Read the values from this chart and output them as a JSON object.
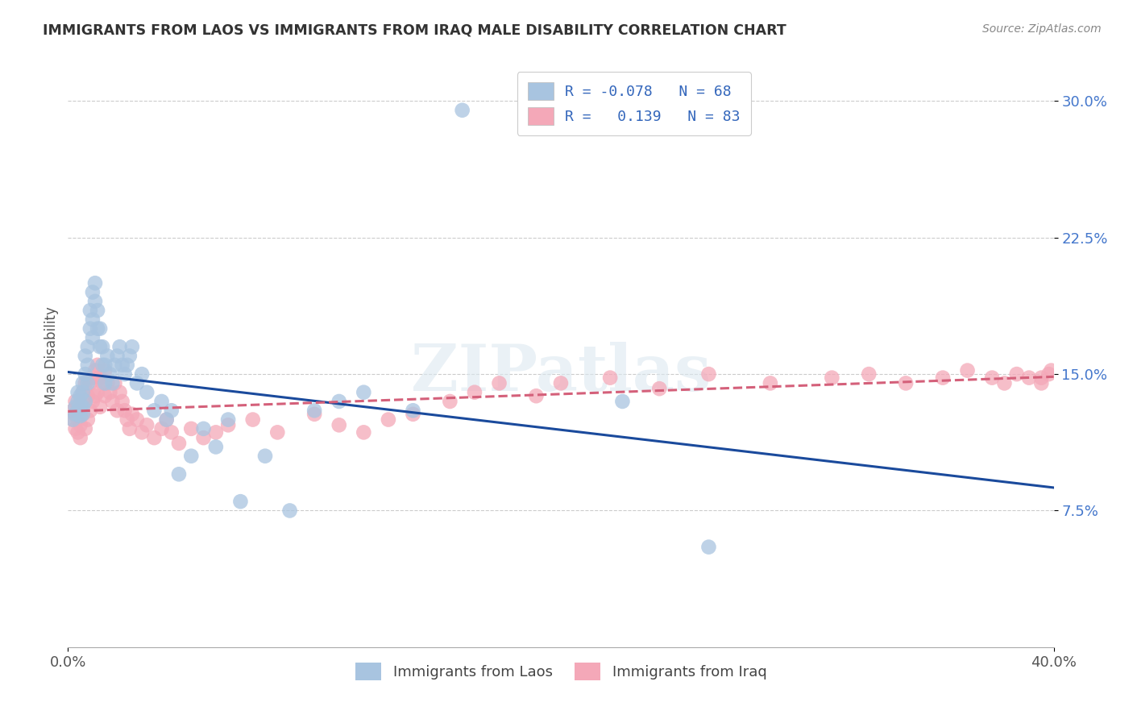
{
  "title": "IMMIGRANTS FROM LAOS VS IMMIGRANTS FROM IRAQ MALE DISABILITY CORRELATION CHART",
  "source": "Source: ZipAtlas.com",
  "ylabel": "Male Disability",
  "xlim": [
    0.0,
    0.4
  ],
  "ylim": [
    0.0,
    0.32
  ],
  "ytick_values": [
    0.075,
    0.15,
    0.225,
    0.3
  ],
  "ytick_labels": [
    "7.5%",
    "15.0%",
    "22.5%",
    "30.0%"
  ],
  "xtick_values": [
    0.0,
    0.4
  ],
  "xtick_labels": [
    "0.0%",
    "40.0%"
  ],
  "legend_laos_R": "-0.078",
  "legend_laos_N": "68",
  "legend_iraq_R": "0.139",
  "legend_iraq_N": "83",
  "laos_color": "#a8c4e0",
  "iraq_color": "#f4a8b8",
  "laos_line_color": "#1a4a9c",
  "iraq_line_color": "#d4607a",
  "background_color": "#ffffff",
  "watermark": "ZIPatlas",
  "laos_x": [
    0.002,
    0.003,
    0.003,
    0.004,
    0.004,
    0.004,
    0.005,
    0.005,
    0.005,
    0.005,
    0.006,
    0.006,
    0.006,
    0.006,
    0.007,
    0.007,
    0.007,
    0.008,
    0.008,
    0.008,
    0.009,
    0.009,
    0.01,
    0.01,
    0.01,
    0.011,
    0.011,
    0.012,
    0.012,
    0.013,
    0.013,
    0.014,
    0.014,
    0.015,
    0.015,
    0.016,
    0.017,
    0.018,
    0.019,
    0.02,
    0.021,
    0.022,
    0.023,
    0.024,
    0.025,
    0.026,
    0.028,
    0.03,
    0.032,
    0.035,
    0.038,
    0.04,
    0.042,
    0.045,
    0.05,
    0.055,
    0.06,
    0.065,
    0.07,
    0.08,
    0.09,
    0.1,
    0.11,
    0.12,
    0.14,
    0.16,
    0.225,
    0.26
  ],
  "laos_y": [
    0.125,
    0.128,
    0.132,
    0.13,
    0.135,
    0.14,
    0.127,
    0.13,
    0.133,
    0.138,
    0.128,
    0.132,
    0.14,
    0.145,
    0.135,
    0.15,
    0.16,
    0.145,
    0.155,
    0.165,
    0.175,
    0.185,
    0.195,
    0.18,
    0.17,
    0.19,
    0.2,
    0.175,
    0.185,
    0.165,
    0.175,
    0.155,
    0.165,
    0.145,
    0.155,
    0.16,
    0.15,
    0.145,
    0.155,
    0.16,
    0.165,
    0.155,
    0.15,
    0.155,
    0.16,
    0.165,
    0.145,
    0.15,
    0.14,
    0.13,
    0.135,
    0.125,
    0.13,
    0.095,
    0.105,
    0.12,
    0.11,
    0.125,
    0.08,
    0.105,
    0.075,
    0.13,
    0.135,
    0.14,
    0.13,
    0.295,
    0.135,
    0.055
  ],
  "iraq_x": [
    0.002,
    0.002,
    0.003,
    0.003,
    0.003,
    0.004,
    0.004,
    0.004,
    0.005,
    0.005,
    0.005,
    0.006,
    0.006,
    0.007,
    0.007,
    0.007,
    0.008,
    0.008,
    0.009,
    0.009,
    0.01,
    0.01,
    0.011,
    0.011,
    0.012,
    0.012,
    0.013,
    0.013,
    0.014,
    0.015,
    0.015,
    0.016,
    0.017,
    0.018,
    0.019,
    0.02,
    0.021,
    0.022,
    0.023,
    0.024,
    0.025,
    0.026,
    0.028,
    0.03,
    0.032,
    0.035,
    0.038,
    0.04,
    0.042,
    0.045,
    0.05,
    0.055,
    0.06,
    0.065,
    0.075,
    0.085,
    0.1,
    0.11,
    0.12,
    0.13,
    0.14,
    0.155,
    0.165,
    0.175,
    0.19,
    0.2,
    0.22,
    0.24,
    0.26,
    0.285,
    0.31,
    0.325,
    0.34,
    0.355,
    0.365,
    0.375,
    0.38,
    0.385,
    0.39,
    0.395,
    0.395,
    0.398,
    0.399
  ],
  "iraq_y": [
    0.13,
    0.125,
    0.12,
    0.128,
    0.135,
    0.118,
    0.125,
    0.132,
    0.115,
    0.122,
    0.13,
    0.128,
    0.14,
    0.12,
    0.135,
    0.145,
    0.125,
    0.138,
    0.13,
    0.145,
    0.135,
    0.148,
    0.138,
    0.152,
    0.14,
    0.155,
    0.132,
    0.148,
    0.145,
    0.138,
    0.152,
    0.145,
    0.14,
    0.135,
    0.145,
    0.13,
    0.14,
    0.135,
    0.13,
    0.125,
    0.12,
    0.128,
    0.125,
    0.118,
    0.122,
    0.115,
    0.12,
    0.125,
    0.118,
    0.112,
    0.12,
    0.115,
    0.118,
    0.122,
    0.125,
    0.118,
    0.128,
    0.122,
    0.118,
    0.125,
    0.128,
    0.135,
    0.14,
    0.145,
    0.138,
    0.145,
    0.148,
    0.142,
    0.15,
    0.145,
    0.148,
    0.15,
    0.145,
    0.148,
    0.152,
    0.148,
    0.145,
    0.15,
    0.148,
    0.145,
    0.148,
    0.15,
    0.152
  ]
}
